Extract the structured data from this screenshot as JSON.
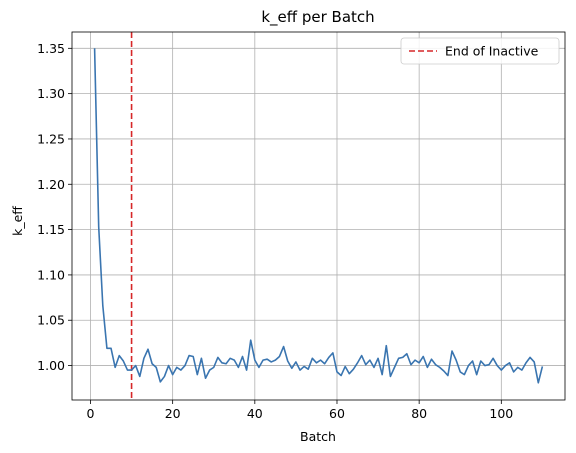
{
  "chart_data": {
    "type": "line",
    "title": "k_eff per Batch",
    "xlabel": "Batch",
    "ylabel": "k_eff",
    "xlim": [
      -4.5,
      115.5
    ],
    "ylim": [
      0.962,
      1.368
    ],
    "xticks": [
      0,
      20,
      40,
      60,
      80,
      100
    ],
    "yticks": [
      1.0,
      1.05,
      1.1,
      1.15,
      1.2,
      1.25,
      1.3,
      1.35
    ],
    "ytick_labels": [
      "1.00",
      "1.05",
      "1.10",
      "1.15",
      "1.20",
      "1.25",
      "1.30",
      "1.35"
    ],
    "grid": true,
    "legend_placement": "top-right",
    "series": [
      {
        "color": "#3a75b0",
        "x": [
          1,
          2,
          3,
          4,
          5,
          6,
          7,
          8,
          9,
          10,
          11,
          12,
          13,
          14,
          15,
          16,
          17,
          18,
          19,
          20,
          21,
          22,
          23,
          24,
          25,
          26,
          27,
          28,
          29,
          30,
          31,
          32,
          33,
          34,
          35,
          36,
          37,
          38,
          39,
          40,
          41,
          42,
          43,
          44,
          45,
          46,
          47,
          48,
          49,
          50,
          51,
          52,
          53,
          54,
          55,
          56,
          57,
          58,
          59,
          60,
          61,
          62,
          63,
          64,
          65,
          66,
          67,
          68,
          69,
          70,
          71,
          72,
          73,
          74,
          75,
          76,
          77,
          78,
          79,
          80,
          81,
          82,
          83,
          84,
          85,
          86,
          87,
          88,
          89,
          90,
          91,
          92,
          93,
          94,
          95,
          96,
          97,
          98,
          99,
          100,
          101,
          102,
          103,
          104,
          105,
          106,
          107,
          108,
          109,
          110
        ],
        "values": [
          1.35,
          1.153,
          1.066,
          1.019,
          1.019,
          0.998,
          1.011,
          1.005,
          0.995,
          0.995,
          1.0,
          0.988,
          1.008,
          1.018,
          1.002,
          0.998,
          0.982,
          0.988,
          1.0,
          0.99,
          0.998,
          0.995,
          1.0,
          1.011,
          1.01,
          0.99,
          1.008,
          0.986,
          0.995,
          0.998,
          1.009,
          1.003,
          1.002,
          1.008,
          1.006,
          0.998,
          1.01,
          0.995,
          1.028,
          1.006,
          0.998,
          1.006,
          1.007,
          1.004,
          1.006,
          1.01,
          1.021,
          1.005,
          0.997,
          1.004,
          0.995,
          0.999,
          0.996,
          1.008,
          1.003,
          1.006,
          1.002,
          1.009,
          1.014,
          0.993,
          0.989,
          0.999,
          0.991,
          0.996,
          1.003,
          1.011,
          1.001,
          1.006,
          0.998,
          1.008,
          0.99,
          1.022,
          0.988,
          0.998,
          1.008,
          1.009,
          1.013,
          1.001,
          1.006,
          1.003,
          1.01,
          0.998,
          1.007,
          1.001,
          0.998,
          0.994,
          0.989,
          1.016,
          1.006,
          0.993,
          0.99,
          1.0,
          1.005,
          0.99,
          1.005,
          1.0,
          1.001,
          1.008,
          1.0,
          0.995,
          1.0,
          1.003,
          0.993,
          0.998,
          0.995,
          1.003,
          1.009,
          1.004,
          0.981,
          0.999
        ]
      }
    ],
    "reference_lines": [
      {
        "orientation": "vertical",
        "x": 10,
        "color": "#d62728",
        "style": "dashed",
        "legend": "End of Inactive"
      }
    ]
  }
}
